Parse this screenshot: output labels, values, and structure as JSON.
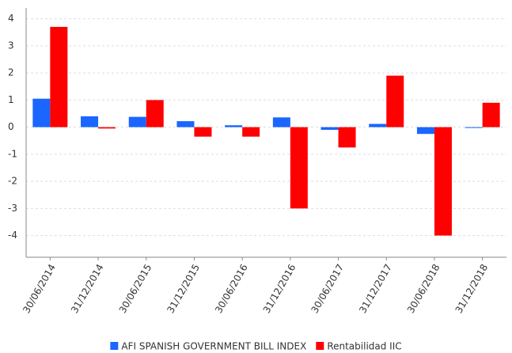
{
  "chart_data": {
    "type": "bar",
    "categories": [
      "30/06/2014",
      "31/12/2014",
      "30/06/2015",
      "31/12/2015",
      "30/06/2016",
      "31/12/2016",
      "30/06/2017",
      "31/12/2017",
      "30/06/2018",
      "31/12/2018"
    ],
    "series": [
      {
        "name": "AFI SPANISH GOVERNMENT BILL INDEX",
        "color": "#1a66ff",
        "values": [
          1.05,
          0.4,
          0.38,
          0.22,
          0.07,
          0.36,
          -0.1,
          0.12,
          -0.25,
          -0.03
        ]
      },
      {
        "name": "Rentabilidad IIC",
        "color": "#ff0000",
        "values": [
          3.7,
          -0.05,
          1.0,
          -0.35,
          -0.35,
          -3.0,
          -0.75,
          1.9,
          -4.0,
          0.9
        ]
      }
    ],
    "ylim": [
      -4.8,
      4.4
    ],
    "yticks": [
      -4,
      -3,
      -2,
      -1,
      0,
      1,
      2,
      3,
      4
    ],
    "grid": true,
    "legend": "bottom"
  }
}
